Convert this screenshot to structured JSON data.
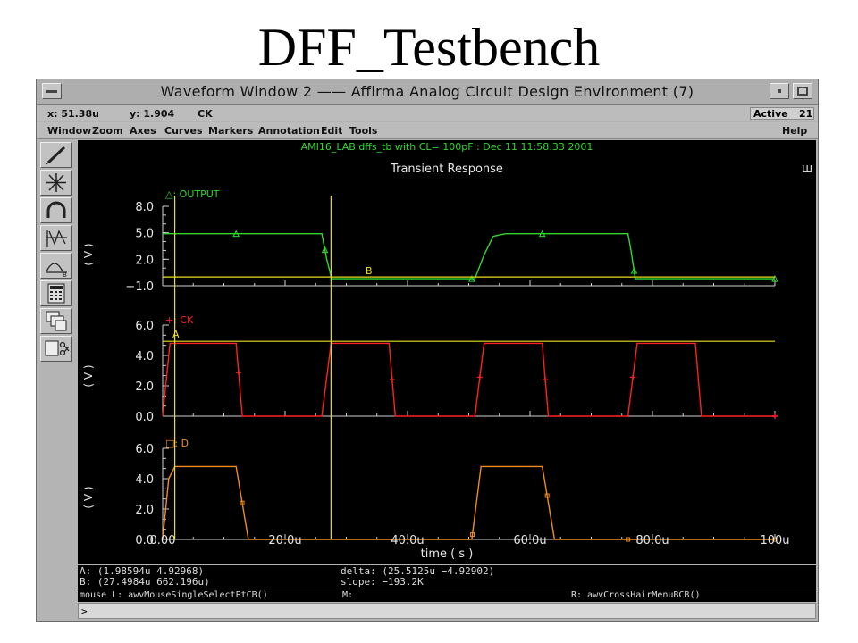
{
  "slide": {
    "title": "DFF_Testbench"
  },
  "window": {
    "title": "Waveform Window 2 —— Affirma Analog Circuit Design Environment (7)",
    "controls": [
      "minimize",
      "maximize"
    ]
  },
  "status": {
    "x": "x: 51.38u",
    "y": "y: 1.904",
    "signal": "CK",
    "mode": "Active",
    "count": "21"
  },
  "menu": {
    "items": [
      "Window",
      "Zoom",
      "Axes",
      "Curves",
      "Markers",
      "Annotation",
      "Edit",
      "Tools"
    ],
    "help": "Help"
  },
  "toolbar": {
    "icons": [
      "pencil-icon",
      "crosshair-icon",
      "magnet-icon",
      "strip-chart-icon",
      "curve-b-icon",
      "calculator-icon",
      "windows-icon",
      "scissors-icon"
    ]
  },
  "plot": {
    "header": "AMI16_LAB dffs_tb with CL= 100pF : Dec 11 11:58:33 2001",
    "subtitle": "Transient Response",
    "corner": "Ш",
    "x_ticks": [
      "0.00",
      "20.0u",
      "40.0u",
      "60.0u",
      "80.0u",
      "100u"
    ],
    "x_label": "time ( s )",
    "y_label": "( V )",
    "marker_a": "A",
    "marker_b": "B",
    "panels": [
      {
        "legend": "△: OUTPUT",
        "y_ticks": [
          "8.0",
          "5.0",
          "2.0",
          "−1.0"
        ],
        "color": "#2ed82e"
      },
      {
        "legend": "+: CK",
        "y_ticks": [
          "6.0",
          "4.0",
          "2.0",
          "0.0"
        ],
        "color": "#ff2020"
      },
      {
        "legend": "□: D",
        "y_ticks": [
          "6.0",
          "4.0",
          "2.0",
          "0.0"
        ],
        "color": "#f08c1e"
      }
    ]
  },
  "chart_data": {
    "type": "line",
    "title": "Transient Response",
    "xlabel": "time ( s )",
    "ylabel": "( V )",
    "xlim": [
      0,
      100
    ],
    "series": [
      {
        "name": "OUTPUT",
        "ylim": [
          -1,
          8
        ],
        "x": [
          0,
          26,
          26.8,
          27.6,
          51,
          52.5,
          54,
          56,
          76,
          76.5,
          77.2,
          100
        ],
        "y": [
          4.9,
          4.9,
          2.0,
          -0.2,
          -0.2,
          2.5,
          4.6,
          4.9,
          4.9,
          3.0,
          -0.2,
          -0.2
        ]
      },
      {
        "name": "CK",
        "ylim": [
          0,
          6
        ],
        "x": [
          0,
          1.2,
          2.0,
          12,
          13,
          26,
          27.5,
          37,
          38,
          51,
          52.5,
          62,
          63,
          76,
          77.5,
          87,
          88,
          100
        ],
        "y": [
          0,
          4.8,
          4.8,
          4.8,
          0,
          0,
          4.8,
          4.8,
          0,
          0,
          4.8,
          4.8,
          0,
          0,
          4.8,
          4.8,
          0,
          0
        ]
      },
      {
        "name": "D",
        "ylim": [
          0,
          6
        ],
        "x": [
          0,
          1.0,
          2.0,
          12,
          14,
          50.5,
          52,
          62,
          64,
          100
        ],
        "y": [
          0,
          4.0,
          4.8,
          4.8,
          0,
          0,
          4.8,
          4.8,
          0,
          0
        ]
      }
    ],
    "cursor_lines": [
      {
        "name": "A",
        "x": 1.98594,
        "y": 4.92968
      },
      {
        "name": "B",
        "x": 27.4984,
        "y": 0.000662196
      }
    ]
  },
  "info": {
    "a": "A: (1.98594u 4.92968)",
    "b": "B: (27.4984u 662.196u)",
    "delta": "delta: (25.5125u −4.92902)",
    "slope": "slope: −193.2K"
  },
  "mouse": {
    "left": "mouse L: awvMouseSingleSelectPtCB()",
    "middle": "M:",
    "right": "R: awvCrossHairMenuBCB()"
  },
  "command": {
    "prompt": ">"
  }
}
